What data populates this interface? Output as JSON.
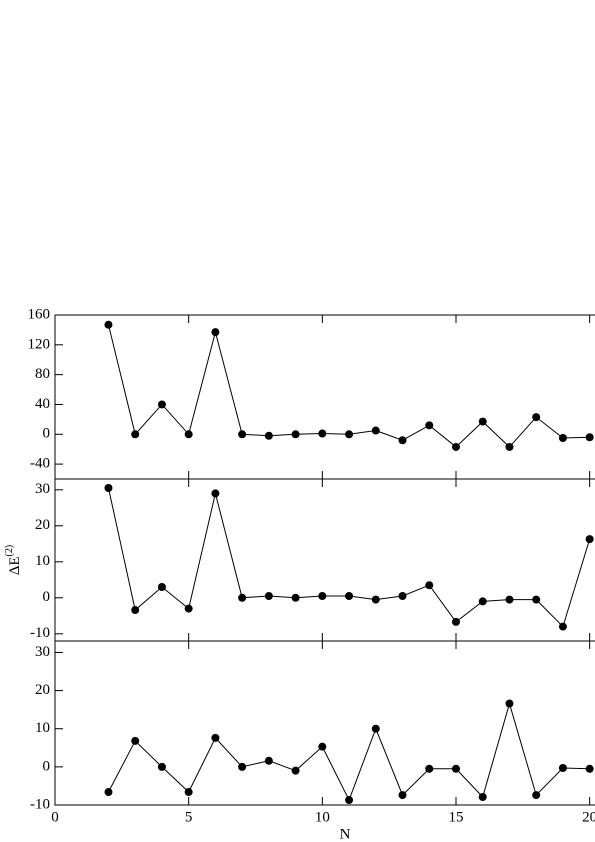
{
  "chart_data": [
    {
      "type": "line",
      "color": "#000000",
      "x": [
        2,
        3,
        4,
        5,
        6,
        7,
        8,
        9,
        10,
        11,
        12,
        13,
        14,
        15,
        16,
        17,
        18,
        19,
        20
      ],
      "values": [
        147,
        0,
        40,
        0,
        137,
        0,
        -2,
        0,
        1,
        0,
        5,
        -8,
        12,
        -17,
        17,
        -17,
        23,
        -5,
        -4
      ],
      "xlim": [
        0,
        20.2
      ],
      "xticks": [
        0,
        5,
        10,
        15,
        20
      ],
      "ylim": [
        -60,
        160
      ],
      "yticks": [
        -40,
        0,
        40,
        80,
        120,
        160
      ]
    },
    {
      "type": "line",
      "color": "#000000",
      "ylabel": "ΔE",
      "ylabel_sup": "(2)",
      "x": [
        2,
        3,
        4,
        5,
        6,
        7,
        8,
        9,
        10,
        11,
        12,
        13,
        14,
        15,
        16,
        17,
        18,
        19,
        20
      ],
      "values": [
        30.5,
        -3.4,
        3,
        -3,
        29,
        0,
        0.5,
        0,
        0.5,
        0.5,
        -0.5,
        0.5,
        3.5,
        -6.7,
        -1,
        -0.5,
        -0.5,
        -8,
        16.3
      ],
      "xlim": [
        0,
        20.2
      ],
      "xticks": [
        0,
        5,
        10,
        15,
        20
      ],
      "ylim": [
        -12,
        33
      ],
      "yticks": [
        -10,
        0,
        10,
        20,
        30
      ]
    },
    {
      "type": "line",
      "color": "#000000",
      "xlabel": "N",
      "x": [
        2,
        3,
        4,
        5,
        6,
        7,
        8,
        9,
        10,
        11,
        12,
        13,
        14,
        15,
        16,
        17,
        18,
        19,
        20
      ],
      "values": [
        -6.6,
        6.8,
        0,
        -6.6,
        7.6,
        0,
        1.6,
        -1,
        5.3,
        -8.7,
        10,
        -7.4,
        -0.5,
        -0.5,
        -7.9,
        16.6,
        -7.4,
        -0.3,
        -0.5
      ],
      "xlim": [
        0,
        20.2
      ],
      "xticks": [
        0,
        5,
        10,
        15,
        20
      ],
      "ylim": [
        -10,
        33
      ],
      "yticks": [
        -10,
        0,
        10,
        20,
        30
      ]
    }
  ]
}
